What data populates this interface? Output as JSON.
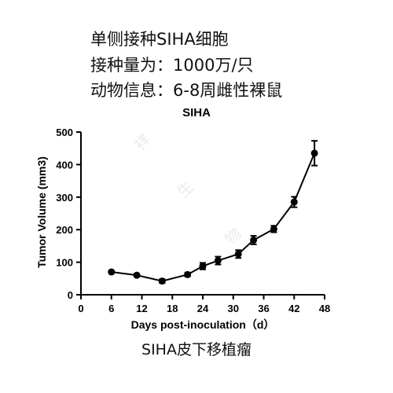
{
  "info": {
    "line1": "单侧接种SIHA细胞",
    "line2": "接种量为：1000万/只",
    "line3": "动物信息：6-8周雌性裸鼠"
  },
  "watermark": [
    "祥",
    "生",
    "物"
  ],
  "caption": "SIHA皮下移植瘤",
  "chart_data": {
    "type": "line",
    "title": "SIHA",
    "xlabel": "Days post-inoculation（d）",
    "ylabel": "Tumor Volume (mm3)",
    "xlim": [
      0,
      48
    ],
    "ylim": [
      0,
      500
    ],
    "xticks": [
      0,
      6,
      12,
      18,
      24,
      30,
      36,
      42,
      48
    ],
    "yticks": [
      0,
      100,
      200,
      300,
      400,
      500
    ],
    "grid": false,
    "series": [
      {
        "x": [
          6,
          11,
          16,
          21,
          24,
          27,
          31,
          34,
          38,
          42,
          46
        ],
        "y": [
          70,
          60,
          42,
          62,
          88,
          105,
          125,
          168,
          202,
          285,
          435
        ],
        "error": [
          4,
          4,
          6,
          6,
          10,
          12,
          12,
          13,
          10,
          16,
          38
        ],
        "color": "#000000"
      }
    ]
  }
}
